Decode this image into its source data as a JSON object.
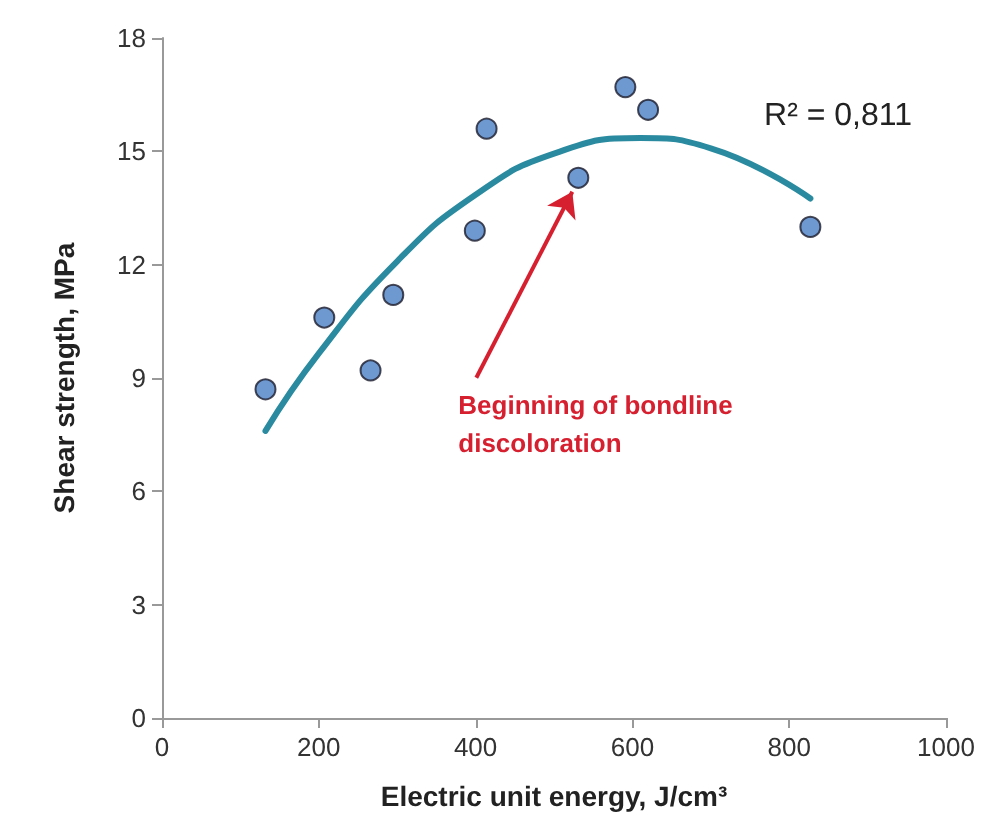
{
  "chart_data": {
    "type": "scatter",
    "xlabel": "Electric unit energy, J/cm³",
    "ylabel": "Shear strength, MPa",
    "xlim": [
      0,
      1000
    ],
    "xticks": [
      0,
      200,
      400,
      600,
      800,
      1000
    ],
    "ylim": [
      0,
      18
    ],
    "yticks": [
      0,
      3,
      6,
      9,
      12,
      15,
      18
    ],
    "grid": false,
    "series": [
      {
        "marker": "circle",
        "color": "#4a7fc4",
        "x": [
          132,
          207,
          266,
          295,
          399,
          414,
          531,
          591,
          620,
          827
        ],
        "values": [
          8.7,
          10.6,
          9.2,
          11.2,
          12.9,
          15.6,
          14.3,
          16.7,
          16.1,
          13.0
        ]
      },
      {
        "type": "line",
        "color": "#2a8a9f",
        "x": [
          132,
          200,
          300,
          400,
          500,
          610,
          700,
          827
        ],
        "values": [
          7.6,
          9.65,
          12.09,
          13.85,
          14.94,
          15.35,
          15.08,
          13.75
        ]
      }
    ],
    "annotations": [
      "R² = 0,811",
      {
        "text": "Beginning of bondline\ndiscoloration",
        "x": 531,
        "y": 14.3
      }
    ]
  }
}
